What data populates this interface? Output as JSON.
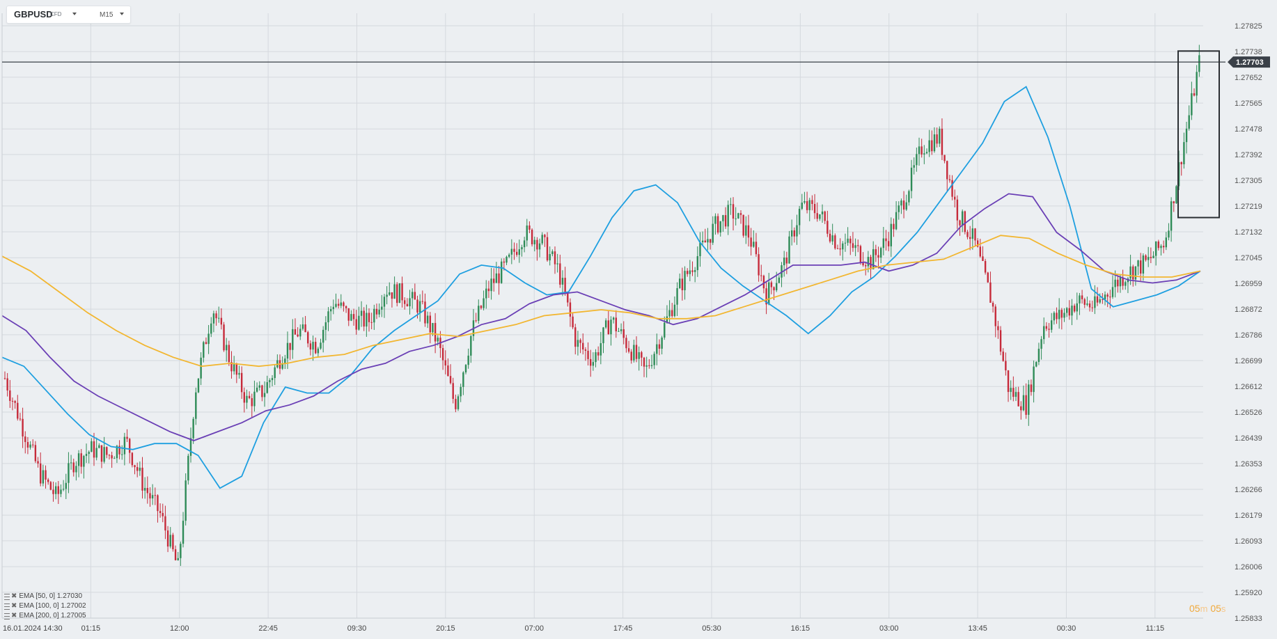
{
  "toolbar": {
    "symbol": "GBPUSD",
    "instrument_type": "CFD",
    "timeframe": "M15"
  },
  "timer": {
    "minutes": "05",
    "minutes_unit": "m",
    "seconds": "05",
    "seconds_unit": "s"
  },
  "colors": {
    "bull": "#2e8b57",
    "bear": "#c62a3a",
    "ema50": "#1e9fe0",
    "ema100": "#6a3fb5",
    "ema200": "#f2b630",
    "grid": "#d5d9de",
    "bg": "#eceff2"
  },
  "chart_data": {
    "type": "candlestick",
    "symbol": "GBPUSD",
    "timeframe": "M15",
    "ylim": [
      1.25833,
      1.27825
    ],
    "y_ticks": [
      "1.27825",
      "1.27738",
      "1.27652",
      "1.27565",
      "1.27478",
      "1.27392",
      "1.27305",
      "1.27219",
      "1.27132",
      "1.27045",
      "1.26959",
      "1.26872",
      "1.26786",
      "1.26699",
      "1.26612",
      "1.26526",
      "1.26439",
      "1.26353",
      "1.26266",
      "1.26179",
      "1.26093",
      "1.26006",
      "1.25920",
      "1.25833"
    ],
    "x_ticks": [
      "16.01.2024 14:30",
      "01:15",
      "12:00",
      "22:45",
      "09:30",
      "20:15",
      "07:00",
      "17:45",
      "05:30",
      "16:15",
      "03:00",
      "13:45",
      "00:30",
      "11:15"
    ],
    "current_price": "1.27703",
    "grid": true,
    "highlight_box": {
      "from_price": 1.2718,
      "to_price": 1.2774,
      "position": "right-end"
    },
    "series": [
      {
        "name": "EMA [50, 0]",
        "value": "1.27030",
        "color": "#1e9fe0",
        "values": [
          1.2671,
          1.2668,
          1.266,
          1.2652,
          1.2645,
          1.2641,
          1.264,
          1.2642,
          1.2642,
          1.2638,
          1.2627,
          1.2631,
          1.2649,
          1.2661,
          1.2659,
          1.2659,
          1.2665,
          1.2674,
          1.268,
          1.2685,
          1.269,
          1.2699,
          1.2702,
          1.2701,
          1.2696,
          1.2692,
          1.2693,
          1.2705,
          1.2718,
          1.2727,
          1.2729,
          1.2723,
          1.271,
          1.2701,
          1.2695,
          1.269,
          1.2685,
          1.2679,
          1.2685,
          1.2693,
          1.2698,
          1.2705,
          1.2713,
          1.2723,
          1.2733,
          1.2743,
          1.2757,
          1.2762,
          1.2745,
          1.2722,
          1.2694,
          1.2688,
          1.269,
          1.2692,
          1.2695,
          1.27
        ]
      },
      {
        "name": "EMA [100, 0]",
        "value": "1.27002",
        "color": "#6a3fb5",
        "values": [
          1.2685,
          1.268,
          1.2671,
          1.2663,
          1.2658,
          1.2654,
          1.265,
          1.2646,
          1.2643,
          1.2646,
          1.2649,
          1.2653,
          1.2655,
          1.2658,
          1.2663,
          1.2667,
          1.2669,
          1.2673,
          1.2675,
          1.2678,
          1.2682,
          1.2684,
          1.2689,
          1.2692,
          1.2693,
          1.269,
          1.2687,
          1.2685,
          1.2682,
          1.2684,
          1.2688,
          1.2692,
          1.2697,
          1.2702,
          1.2702,
          1.2702,
          1.2703,
          1.27,
          1.2702,
          1.2706,
          1.2715,
          1.2721,
          1.2726,
          1.2725,
          1.2713,
          1.2707,
          1.27,
          1.2697,
          1.2696,
          1.2697,
          1.27
        ]
      },
      {
        "name": "EMA [200, 0]",
        "value": "1.27005",
        "color": "#f2b630",
        "values": [
          1.2705,
          1.27,
          1.2693,
          1.2686,
          1.268,
          1.2675,
          1.2671,
          1.2668,
          1.2669,
          1.2668,
          1.2669,
          1.2671,
          1.2672,
          1.2675,
          1.2677,
          1.2679,
          1.2678,
          1.268,
          1.2682,
          1.2685,
          1.2686,
          1.2687,
          1.2686,
          1.2684,
          1.2684,
          1.2685,
          1.2688,
          1.2691,
          1.2694,
          1.2697,
          1.27,
          1.2702,
          1.2703,
          1.2704,
          1.2708,
          1.2712,
          1.2711,
          1.2706,
          1.2702,
          1.2699,
          1.2698,
          1.2698,
          1.27
        ]
      }
    ],
    "close_path": [
      1.2664,
      1.2648,
      1.2632,
      1.2624,
      1.2636,
      1.264,
      1.2638,
      1.2643,
      1.2628,
      1.2618,
      1.26,
      1.266,
      1.2688,
      1.267,
      1.2656,
      1.266,
      1.2672,
      1.268,
      1.2675,
      1.269,
      1.2684,
      1.2683,
      1.2694,
      1.2692,
      1.2688,
      1.2676,
      1.2655,
      1.268,
      1.2695,
      1.2702,
      1.2713,
      1.271,
      1.27,
      1.2676,
      1.267,
      1.2684,
      1.2675,
      1.2666,
      1.268,
      1.2695,
      1.2705,
      1.2715,
      1.272,
      1.2712,
      1.2692,
      1.2702,
      1.2722,
      1.272,
      1.271,
      1.2708,
      1.2703,
      1.2711,
      1.2725,
      1.2742,
      1.2745,
      1.272,
      1.271,
      1.269,
      1.266,
      1.2655,
      1.2682,
      1.2685,
      1.269,
      1.2688,
      1.2695,
      1.27,
      1.2703,
      1.271,
      1.274,
      1.277
    ]
  }
}
